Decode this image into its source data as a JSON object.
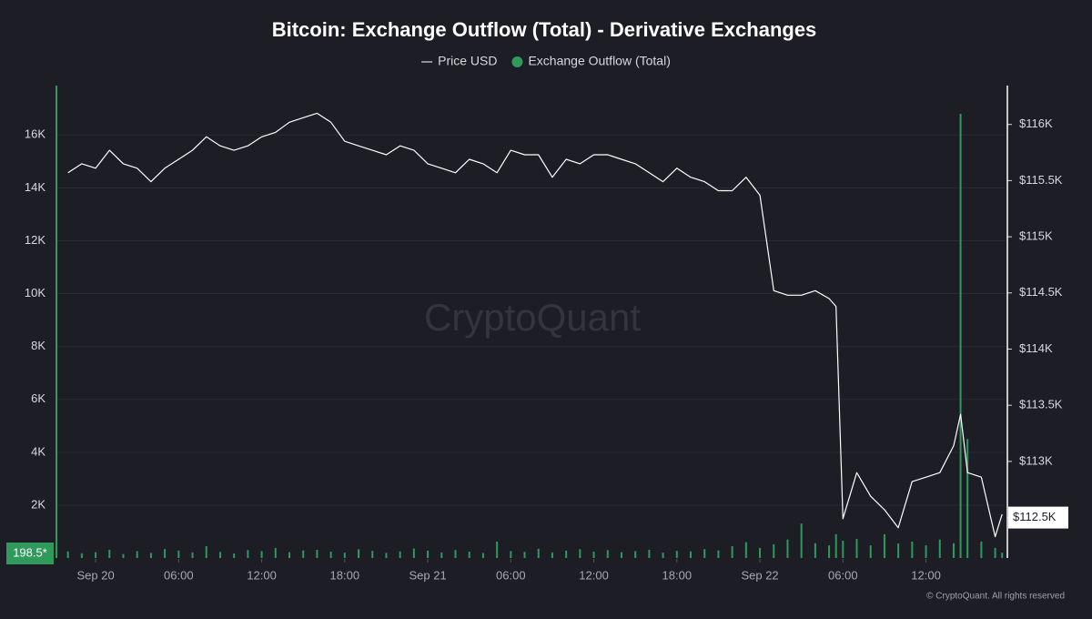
{
  "chart_data": {
    "type": "line-bar",
    "title": "Bitcoin: Exchange Outflow (Total) - Derivative Exchanges",
    "watermark": "CryptoQuant",
    "footer": "© CryptoQuant. All rights reserved",
    "current_value_label": "198.5*",
    "x": [
      "Sep 19 22:00",
      "Sep 19 23:00",
      "Sep 20 00:00",
      "Sep 20 01:00",
      "Sep 20 02:00",
      "Sep 20 03:00",
      "Sep 20 04:00",
      "Sep 20 05:00",
      "Sep 20 06:00",
      "Sep 20 07:00",
      "Sep 20 08:00",
      "Sep 20 09:00",
      "Sep 20 10:00",
      "Sep 20 11:00",
      "Sep 20 12:00",
      "Sep 20 13:00",
      "Sep 20 14:00",
      "Sep 20 15:00",
      "Sep 20 16:00",
      "Sep 20 17:00",
      "Sep 20 18:00",
      "Sep 20 19:00",
      "Sep 20 20:00",
      "Sep 20 21:00",
      "Sep 20 22:00",
      "Sep 20 23:00",
      "Sep 21 00:00",
      "Sep 21 01:00",
      "Sep 21 02:00",
      "Sep 21 03:00",
      "Sep 21 04:00",
      "Sep 21 05:00",
      "Sep 21 06:00",
      "Sep 21 07:00",
      "Sep 21 08:00",
      "Sep 21 09:00",
      "Sep 21 10:00",
      "Sep 21 11:00",
      "Sep 21 12:00",
      "Sep 21 13:00",
      "Sep 21 14:00",
      "Sep 21 15:00",
      "Sep 21 16:00",
      "Sep 21 17:00",
      "Sep 21 18:00",
      "Sep 21 19:00",
      "Sep 21 20:00",
      "Sep 21 21:00",
      "Sep 21 22:00",
      "Sep 21 23:00",
      "Sep 22 00:00",
      "Sep 22 01:00",
      "Sep 22 02:00",
      "Sep 22 03:00",
      "Sep 22 04:00",
      "Sep 22 05:00",
      "Sep 22 05:30",
      "Sep 22 06:00",
      "Sep 22 07:00",
      "Sep 22 08:00",
      "Sep 22 09:00",
      "Sep 22 10:00",
      "Sep 22 11:00",
      "Sep 22 12:00",
      "Sep 22 13:00",
      "Sep 22 14:00",
      "Sep 22 14:30",
      "Sep 22 15:00",
      "Sep 22 16:00",
      "Sep 22 17:00",
      "Sep 22 17:30"
    ],
    "series": [
      {
        "name": "Price USD",
        "color": "#ffffff",
        "axis": "y2",
        "kind": "line",
        "values": [
          115570,
          115650,
          115610,
          115770,
          115650,
          115610,
          115490,
          115610,
          115690,
          115770,
          115890,
          115810,
          115770,
          115810,
          115890,
          115930,
          116020,
          116060,
          116100,
          116020,
          115850,
          115810,
          115770,
          115730,
          115810,
          115770,
          115650,
          115610,
          115570,
          115690,
          115650,
          115570,
          115770,
          115730,
          115730,
          115530,
          115690,
          115650,
          115730,
          115730,
          115690,
          115650,
          115570,
          115490,
          115610,
          115530,
          115490,
          115410,
          115410,
          115530,
          115370,
          114520,
          114480,
          114480,
          114520,
          114450,
          114380,
          112490,
          112900,
          112690,
          112570,
          112410,
          112820,
          112860,
          112900,
          113140,
          113420,
          112900,
          112860,
          112330,
          112530
        ]
      },
      {
        "name": "Exchange Outflow (Total)",
        "color": "#2f9a5c",
        "axis": "y",
        "kind": "bar",
        "values": [
          250,
          180,
          220,
          310,
          150,
          260,
          190,
          340,
          280,
          210,
          450,
          230,
          170,
          300,
          260,
          380,
          220,
          290,
          310,
          240,
          200,
          330,
          270,
          190,
          250,
          360,
          280,
          210,
          300,
          240,
          190,
          620,
          260,
          230,
          350,
          210,
          280,
          330,
          240,
          300,
          220,
          260,
          310,
          200,
          270,
          250,
          340,
          290,
          450,
          600,
          380,
          520,
          700,
          1300,
          560,
          480,
          900,
          650,
          720,
          480,
          900,
          550,
          620,
          480,
          700,
          560,
          16800,
          4500,
          620,
          380,
          198.5
        ]
      }
    ],
    "xlim": [
      "Sep 19 21:10",
      "Sep 22 17:45"
    ],
    "xticks": [
      {
        "value": "Sep 20 00:00",
        "label": "Sep 20"
      },
      {
        "value": "Sep 20 06:00",
        "label": "06:00"
      },
      {
        "value": "Sep 20 12:00",
        "label": "12:00"
      },
      {
        "value": "Sep 20 18:00",
        "label": "18:00"
      },
      {
        "value": "Sep 21 00:00",
        "label": "Sep 21"
      },
      {
        "value": "Sep 21 06:00",
        "label": "06:00"
      },
      {
        "value": "Sep 21 12:00",
        "label": "12:00"
      },
      {
        "value": "Sep 21 18:00",
        "label": "18:00"
      },
      {
        "value": "Sep 22 00:00",
        "label": "Sep 22"
      },
      {
        "value": "Sep 22 06:00",
        "label": "06:00"
      },
      {
        "value": "Sep 22 12:00",
        "label": "12:00"
      }
    ],
    "ylim": [
      0,
      17800
    ],
    "yticks": [
      {
        "value": 2000,
        "label": "2K"
      },
      {
        "value": 4000,
        "label": "4K"
      },
      {
        "value": 6000,
        "label": "6K"
      },
      {
        "value": 8000,
        "label": "8K"
      },
      {
        "value": 10000,
        "label": "10K"
      },
      {
        "value": 12000,
        "label": "12K"
      },
      {
        "value": 14000,
        "label": "14K"
      },
      {
        "value": 16000,
        "label": "16K"
      }
    ],
    "y2lim": [
      112140,
      116330
    ],
    "y2ticks": [
      {
        "value": 112500,
        "label": "$112.5K"
      },
      {
        "value": 113000,
        "label": "$113K"
      },
      {
        "value": 113500,
        "label": "$113.5K"
      },
      {
        "value": 114000,
        "label": "$114K"
      },
      {
        "value": 114500,
        "label": "$114.5K"
      },
      {
        "value": 115000,
        "label": "$115K"
      },
      {
        "value": 115500,
        "label": "$115.5K"
      },
      {
        "value": 116000,
        "label": "$116K"
      }
    ],
    "grid": true
  }
}
